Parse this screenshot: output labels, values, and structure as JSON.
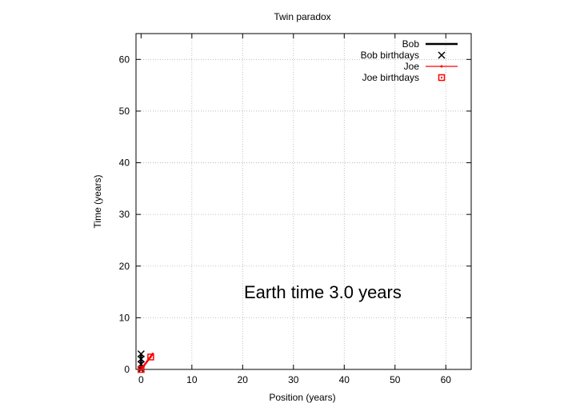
{
  "chart_data": {
    "type": "line",
    "title": "Twin paradox",
    "xlabel": "Position (years)",
    "ylabel": "Time (years)",
    "xlim": [
      -1,
      65
    ],
    "ylim": [
      0,
      65
    ],
    "xticks": [
      0,
      10,
      20,
      30,
      40,
      50,
      60
    ],
    "yticks": [
      0,
      10,
      20,
      30,
      40,
      50,
      60
    ],
    "grid": true,
    "legend_position": "top-right",
    "annotation": "Earth time  3.0 years",
    "series": [
      {
        "name": "Bob",
        "style": "line",
        "color": "#000000",
        "x": [
          0,
          0
        ],
        "y": [
          0,
          3.0
        ]
      },
      {
        "name": "Bob birthdays",
        "style": "points-x",
        "color": "#000000",
        "x": [
          0,
          0,
          0,
          0
        ],
        "y": [
          0,
          1,
          2,
          3
        ]
      },
      {
        "name": "Joe",
        "style": "linepoints",
        "color": "#ff0000",
        "x": [
          0,
          2.3
        ],
        "y": [
          0,
          3.0
        ]
      },
      {
        "name": "Joe birthdays",
        "style": "points-square",
        "color": "#ff0000",
        "x": [
          0,
          1.9
        ],
        "y": [
          0,
          2.4
        ]
      }
    ]
  }
}
